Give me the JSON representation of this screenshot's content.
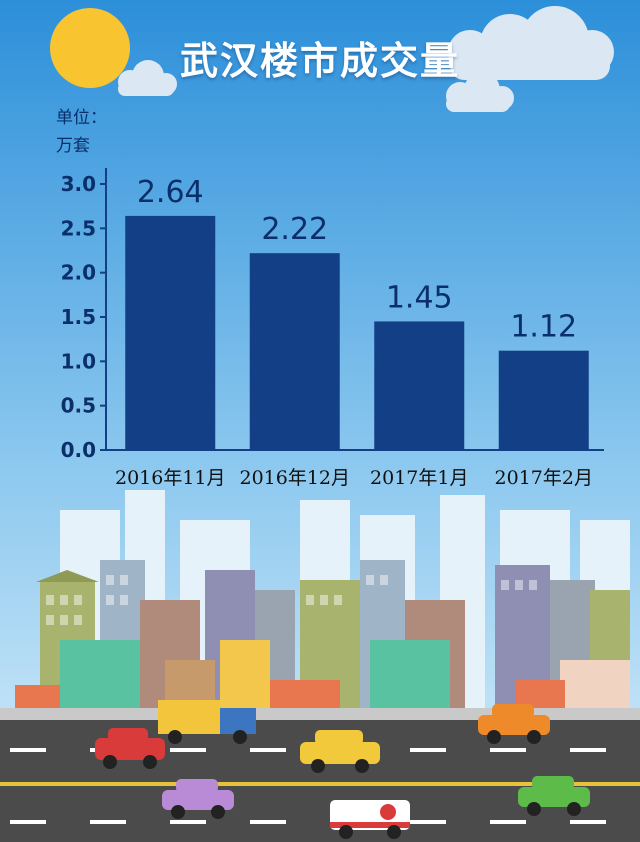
{
  "title": "武汉楼市成交量",
  "unit_label_line1": "单位：",
  "unit_label_line2": "万套",
  "chart_data": {
    "type": "bar",
    "title": "武汉楼市成交量",
    "ylabel": "单位：万套",
    "xlabel": "",
    "categories": [
      "2016年11月",
      "2016年12月",
      "2017年1月",
      "2017年2月"
    ],
    "values": [
      2.64,
      2.22,
      1.45,
      1.12
    ],
    "data_labels": [
      "2.64",
      "2.22",
      "1.45",
      "1.12"
    ],
    "ylim": [
      0,
      3.0
    ],
    "yticks": [
      "0.0",
      "0.5",
      "1.0",
      "1.5",
      "2.0",
      "2.5",
      "3.0"
    ],
    "bar_color": "#123f86",
    "grid": false
  },
  "colors": {
    "sky_top": "#2c8fd9",
    "sky_bottom": "#cfe9f8",
    "bar": "#123f86",
    "axis_text": "#0b2f6b",
    "road": "#4b4b4b"
  }
}
